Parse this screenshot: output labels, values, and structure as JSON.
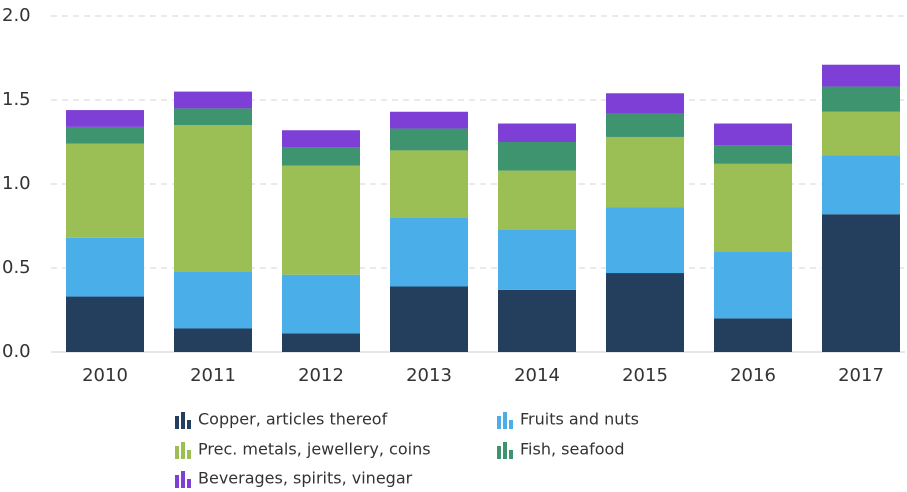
{
  "chart_data": {
    "type": "bar",
    "stacked": true,
    "categories": [
      "2010",
      "2011",
      "2012",
      "2013",
      "2014",
      "2015",
      "2016",
      "2017"
    ],
    "series": [
      {
        "name": "Copper, articles thereof",
        "color": "#243f5e",
        "values": [
          0.33,
          0.14,
          0.11,
          0.39,
          0.37,
          0.47,
          0.2,
          0.82
        ]
      },
      {
        "name": "Fruits and nuts",
        "color": "#4aaee8",
        "values": [
          0.35,
          0.34,
          0.35,
          0.41,
          0.36,
          0.39,
          0.4,
          0.35
        ]
      },
      {
        "name": "Prec. metals, jewellery, coins",
        "color": "#9bbf55",
        "values": [
          0.56,
          0.87,
          0.65,
          0.4,
          0.35,
          0.42,
          0.52,
          0.26
        ]
      },
      {
        "name": "Fish, seafood",
        "color": "#3f9470",
        "values": [
          0.1,
          0.1,
          0.11,
          0.13,
          0.17,
          0.14,
          0.11,
          0.15
        ]
      },
      {
        "name": "Beverages, spirits, vinegar",
        "color": "#7d3fd6",
        "values": [
          0.1,
          0.1,
          0.1,
          0.1,
          0.11,
          0.12,
          0.13,
          0.13
        ]
      }
    ],
    "ylim": [
      0,
      2.0
    ],
    "yticks": [
      {
        "value": 0,
        "label": "0.0"
      },
      0.5,
      {
        "value": 1,
        "label": "1.0"
      },
      1.5,
      {
        "value": 2,
        "label": "2.0"
      }
    ],
    "grid": true,
    "legend": "bottom"
  }
}
